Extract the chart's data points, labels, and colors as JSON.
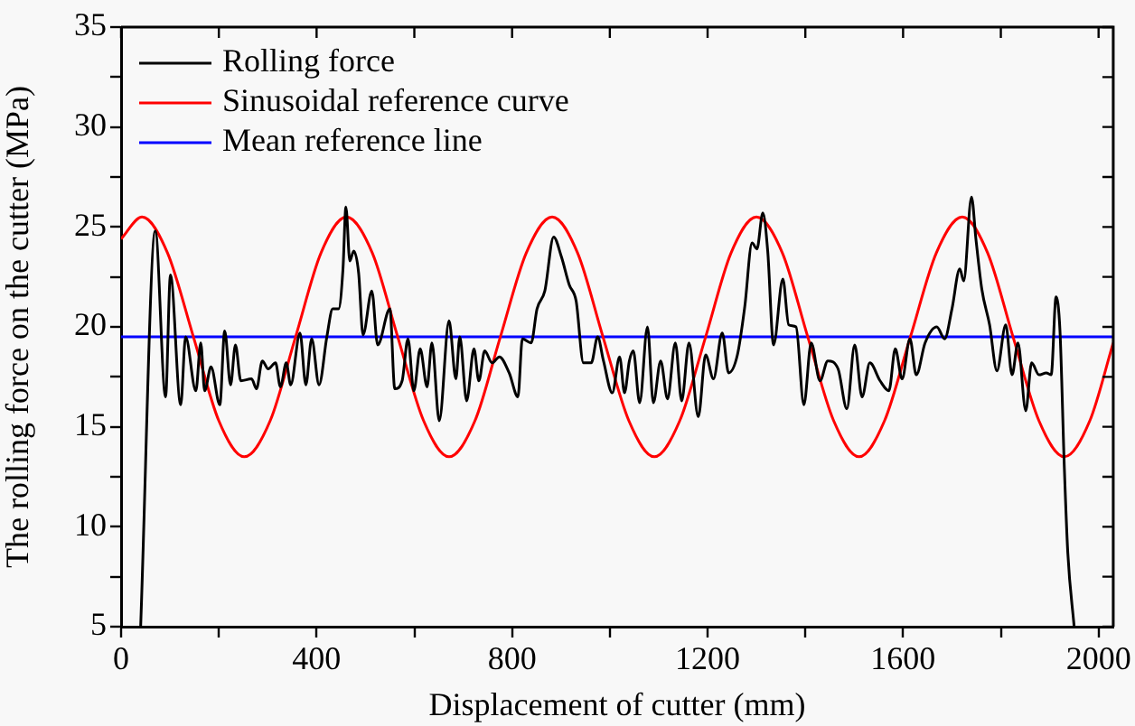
{
  "chart_data": {
    "type": "line",
    "xlabel": "Displacement of cutter (mm)",
    "ylabel": "The rolling force on the cutter (MPa)",
    "xlim": [
      0,
      2030
    ],
    "ylim": [
      5,
      35
    ],
    "xticks": [
      0,
      {
        "value": 200,
        "label": null
      },
      400,
      {
        "value": 600,
        "label": null
      },
      800,
      {
        "value": 1000,
        "label": null
      },
      1200,
      {
        "value": 1400,
        "label": null
      },
      1600,
      {
        "value": 1800,
        "label": null
      },
      2000
    ],
    "yticks": [
      5,
      {
        "value": 7.5,
        "label": null
      },
      10,
      {
        "value": 12.5,
        "label": null
      },
      15,
      {
        "value": 17.5,
        "label": null
      },
      20,
      {
        "value": 22.5,
        "label": null
      },
      25,
      {
        "value": 27.5,
        "label": null
      },
      30,
      {
        "value": 32.5,
        "label": null
      },
      35
    ],
    "grid": false,
    "legend": "top left",
    "marker": "none",
    "line_style": "solid",
    "series": [
      {
        "name": "Rolling force",
        "color": "#000000",
        "x": [
          40,
          70,
          91,
          101,
          122,
          132,
          153,
          163,
          171,
          184,
          202,
          212,
          224,
          234,
          245,
          267,
          277,
          289,
          301,
          316,
          326,
          338,
          347,
          366,
          378,
          390,
          405,
          421,
          433,
          445,
          454,
          460,
          468,
          476,
          486,
          495,
          513,
          525,
          550,
          560,
          575,
          587,
          599,
          612,
          626,
          636,
          651,
          671,
          685,
          693,
          707,
          722,
          732,
          744,
          759,
          774,
          794,
          812,
          821,
          839,
          851,
          867,
          885,
          901,
          917,
          931,
          946,
          962,
          975,
          987,
          1005,
          1020,
          1030,
          1040,
          1048,
          1061,
          1077,
          1089,
          1104,
          1118,
          1134,
          1147,
          1162,
          1181,
          1196,
          1212,
          1230,
          1243,
          1261,
          1276,
          1291,
          1301,
          1313,
          1323,
          1335,
          1354,
          1366,
          1381,
          1397,
          1412,
          1430,
          1446,
          1467,
          1485,
          1501,
          1516,
          1532,
          1553,
          1571,
          1584,
          1598,
          1614,
          1627,
          1645,
          1669,
          1685,
          1700,
          1716,
          1724,
          1740,
          1749,
          1761,
          1777,
          1792,
          1810,
          1823,
          1835,
          1851,
          1863,
          1878,
          1893,
          1903,
          1913,
          1921,
          1930,
          1937,
          1950
        ],
        "values": [
          5.0,
          24.8,
          16.5,
          22.6,
          16.1,
          19.5,
          16.8,
          19.2,
          16.8,
          18.0,
          16.1,
          19.8,
          17.1,
          19.1,
          17.3,
          17.4,
          16.9,
          18.3,
          17.9,
          18.2,
          17.0,
          18.2,
          17.1,
          19.7,
          17.1,
          19.4,
          17.1,
          19.5,
          20.9,
          20.9,
          22.9,
          26.0,
          23.3,
          23.8,
          22.7,
          19.6,
          21.8,
          19.1,
          20.9,
          16.9,
          17.3,
          19.4,
          16.8,
          18.9,
          17.0,
          19.2,
          15.3,
          20.3,
          17.4,
          19.5,
          16.3,
          18.9,
          17.3,
          18.8,
          18.2,
          18.5,
          17.7,
          16.5,
          19.4,
          19.2,
          20.9,
          21.8,
          24.5,
          23.5,
          22.1,
          21.3,
          18.2,
          18.2,
          19.5,
          18.3,
          16.7,
          18.5,
          16.7,
          18.3,
          18.8,
          16.2,
          20.0,
          16.2,
          18.3,
          16.4,
          19.2,
          16.3,
          19.2,
          15.5,
          18.6,
          17.4,
          19.7,
          17.7,
          18.6,
          21.0,
          24.2,
          23.9,
          25.7,
          23.8,
          19.1,
          22.4,
          20.1,
          20.0,
          16.1,
          19.2,
          17.3,
          18.3,
          17.9,
          15.9,
          19.1,
          16.5,
          18.2,
          17.3,
          16.8,
          18.9,
          17.4,
          19.4,
          17.6,
          19.2,
          20.0,
          19.4,
          20.9,
          22.9,
          22.3,
          26.5,
          24.4,
          21.9,
          20.1,
          17.8,
          20.1,
          17.6,
          19.2,
          15.8,
          18.2,
          17.6,
          17.7,
          17.6,
          21.5,
          19.8,
          12.9,
          8.7,
          5.0
        ]
      },
      {
        "name": "Sinusoidal reference curve",
        "color": "#ff0000",
        "x": [
          0,
          43,
          95,
          148,
          200,
          252,
          305,
          357,
          409,
          461,
          514,
          566,
          619,
          671,
          724,
          776,
          829,
          882,
          934,
          986,
          1039,
          1091,
          1143,
          1196,
          1248,
          1300,
          1353,
          1405,
          1458,
          1510,
          1562,
          1615,
          1668,
          1721,
          1773,
          1825,
          1878,
          1930,
          1982,
          2030
        ],
        "values": [
          24.4,
          25.5,
          23.7,
          19.5,
          15.3,
          13.5,
          15.3,
          19.5,
          23.7,
          25.5,
          23.7,
          19.5,
          15.3,
          13.5,
          15.3,
          19.5,
          23.7,
          25.5,
          23.7,
          19.5,
          15.3,
          13.5,
          15.3,
          19.5,
          23.7,
          25.5,
          23.7,
          19.5,
          15.3,
          13.5,
          15.3,
          19.5,
          23.7,
          25.5,
          23.7,
          19.5,
          15.3,
          13.5,
          15.3,
          19.2
        ]
      },
      {
        "name": "Mean reference line",
        "color": "#0000ff",
        "x": [
          0,
          2030
        ],
        "values": [
          19.5,
          19.5
        ]
      }
    ]
  }
}
